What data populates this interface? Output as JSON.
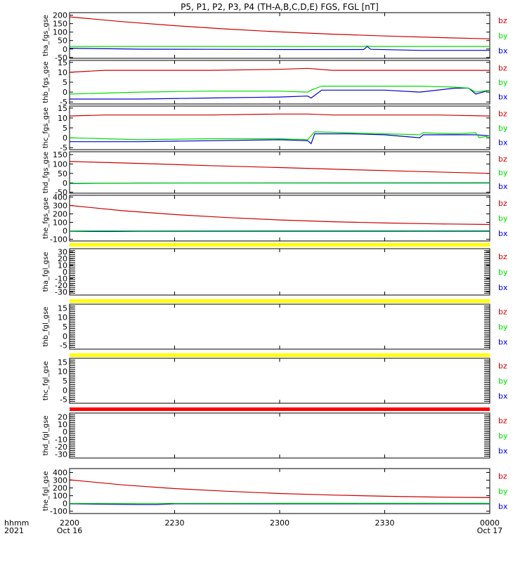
{
  "title": "P5, P1, P2, P3, P4 (TH-A,B,C,D,E) FGS, FGL [nT]",
  "time_axis": {
    "row1_label": "hhmm",
    "row2_label": "2021",
    "ticks": [
      {
        "t": 0,
        "label": "2200",
        "date": "Oct 16"
      },
      {
        "t": 30,
        "label": "2230",
        "date": ""
      },
      {
        "t": 60,
        "label": "2300",
        "date": ""
      },
      {
        "t": 90,
        "label": "2330",
        "date": ""
      },
      {
        "t": 120,
        "label": "0000",
        "date": "Oct 17"
      }
    ],
    "range_minutes": [
      0,
      120
    ]
  },
  "colors": {
    "bz": "#cc0000",
    "by": "#00dd00",
    "bx": "#0000cc",
    "flag_yellow": "#ffff00",
    "flag_red": "#ff0000",
    "axis": "#000000"
  },
  "chart_data": [
    {
      "type": "line",
      "name": "tha_fgs_gse",
      "ylabel": "tha_fgs_gse",
      "ylim": [
        -55,
        215
      ],
      "yticks": [
        -50,
        0,
        50,
        100,
        150,
        200
      ],
      "legend": [
        "bz",
        "by",
        "bx"
      ],
      "flag": "none",
      "series": [
        {
          "name": "bz",
          "x": [
            0,
            15,
            30,
            45,
            60,
            75,
            90,
            105,
            120
          ],
          "values": [
            190,
            162,
            138,
            118,
            101,
            88,
            77,
            68,
            60
          ]
        },
        {
          "name": "by",
          "x": [
            0,
            30,
            60,
            84,
            85,
            86,
            120
          ],
          "values": [
            15,
            15,
            15,
            15,
            18,
            15,
            15
          ]
        },
        {
          "name": "bx",
          "x": [
            0,
            20,
            40,
            60,
            84,
            85,
            86,
            100,
            120
          ],
          "values": [
            5,
            -1,
            -2,
            -3,
            -3,
            15,
            -2,
            -8,
            -8
          ]
        }
      ]
    },
    {
      "type": "line",
      "name": "thb_fgs_gse",
      "ylabel": "thb_fgs_gse",
      "ylim": [
        -6,
        16
      ],
      "yticks": [
        -5,
        0,
        5,
        10,
        15
      ],
      "legend": [
        "bz",
        "by",
        "bx"
      ],
      "flag": "none",
      "series": [
        {
          "name": "bz",
          "x": [
            0,
            10,
            20,
            40,
            60,
            68,
            75,
            90,
            105,
            120
          ],
          "values": [
            10,
            11,
            11,
            11,
            11.5,
            12,
            11,
            11,
            11,
            11
          ]
        },
        {
          "name": "by",
          "x": [
            0,
            20,
            40,
            60,
            68,
            69,
            72,
            80,
            90,
            100,
            110,
            114,
            116,
            120
          ],
          "values": [
            -1,
            0,
            0.5,
            0.5,
            0,
            1,
            3,
            3,
            3,
            3,
            2.5,
            2,
            0,
            1
          ]
        },
        {
          "name": "bx",
          "x": [
            0,
            20,
            40,
            60,
            68,
            69,
            72,
            80,
            90,
            100,
            110,
            114,
            116,
            120
          ],
          "values": [
            -3.5,
            -3.5,
            -3,
            -2.5,
            -2,
            -3,
            1,
            1,
            1,
            0,
            2,
            2,
            -1,
            1
          ]
        }
      ]
    },
    {
      "type": "line",
      "name": "thc_fgs_gse",
      "ylabel": "thc_fgs_gse",
      "ylim": [
        -6,
        16
      ],
      "yticks": [
        -5,
        0,
        5,
        10,
        15
      ],
      "legend": [
        "bz",
        "by",
        "bx"
      ],
      "flag": "none",
      "series": [
        {
          "name": "bz",
          "x": [
            0,
            10,
            20,
            40,
            60,
            68,
            75,
            90,
            105,
            120
          ],
          "values": [
            11,
            11.5,
            11.5,
            11.5,
            12,
            12,
            11.5,
            11.5,
            11.5,
            11
          ]
        },
        {
          "name": "by",
          "x": [
            0,
            20,
            40,
            60,
            68,
            69,
            70,
            80,
            90,
            100,
            101,
            110,
            116,
            117,
            120
          ],
          "values": [
            0,
            -1,
            -0.5,
            -0.5,
            -1,
            1,
            3,
            2.5,
            2,
            1.5,
            2.5,
            2,
            2.5,
            0,
            1
          ]
        },
        {
          "name": "bx",
          "x": [
            0,
            20,
            40,
            60,
            68,
            69,
            70,
            80,
            90,
            100,
            101,
            110,
            116,
            120
          ],
          "values": [
            -2,
            -2,
            -1.5,
            -1,
            -1.5,
            -3,
            2,
            2,
            1.5,
            0,
            1.5,
            1.5,
            1.5,
            1
          ]
        }
      ]
    },
    {
      "type": "line",
      "name": "thd_fgs_gse",
      "ylabel": "thd_fgs_gse",
      "ylim": [
        -55,
        165
      ],
      "yticks": [
        -50,
        0,
        50,
        100,
        150
      ],
      "legend": [
        "bz",
        "by",
        "bx"
      ],
      "flag": "none",
      "series": [
        {
          "name": "bz",
          "x": [
            0,
            20,
            40,
            60,
            80,
            100,
            120
          ],
          "values": [
            113,
            103,
            91,
            81,
            70,
            60,
            50
          ]
        },
        {
          "name": "by",
          "x": [
            0,
            60,
            120
          ],
          "values": [
            -2,
            0,
            1
          ]
        },
        {
          "name": "bx",
          "x": [
            0,
            10,
            20,
            120
          ],
          "values": [
            -4,
            -2,
            -1,
            -1
          ]
        }
      ]
    },
    {
      "type": "line",
      "name": "the_fgs_gse",
      "ylabel": "the_fgs_gse",
      "ylim": [
        -120,
        420
      ],
      "yticks": [
        -100,
        0,
        100,
        200,
        300,
        400
      ],
      "legend": [
        "bz",
        "by",
        "bx"
      ],
      "flag": "yellow",
      "series": [
        {
          "name": "bz",
          "x": [
            0,
            15,
            30,
            45,
            60,
            75,
            90,
            105,
            120
          ],
          "values": [
            300,
            238,
            192,
            157,
            128,
            108,
            93,
            82,
            75
          ]
        },
        {
          "name": "by",
          "x": [
            0,
            60,
            120
          ],
          "values": [
            0,
            2,
            2
          ]
        },
        {
          "name": "bx",
          "x": [
            0,
            10,
            20,
            60,
            120
          ],
          "values": [
            -5,
            -8,
            -5,
            -5,
            -5
          ]
        }
      ]
    },
    {
      "type": "line",
      "name": "tha_fgl_gse",
      "ylabel": "tha_fgl_gse",
      "ylim": [
        -35,
        35
      ],
      "yticks": [
        -30,
        -20,
        -10,
        0,
        10,
        20,
        30
      ],
      "legend": [
        "bz",
        "by",
        "bx"
      ],
      "flag": "yellow",
      "series": []
    },
    {
      "type": "line",
      "name": "thb_fgl_gse",
      "ylabel": "thb_fgl_gse",
      "ylim": [
        -7,
        17
      ],
      "yticks": [
        -5,
        0,
        5,
        10,
        15
      ],
      "legend": [
        "bz",
        "by",
        "bx"
      ],
      "flag": "yellow",
      "series": []
    },
    {
      "type": "line",
      "name": "thc_fgl_gse",
      "ylabel": "thc_fgl_gse",
      "ylim": [
        -7,
        17
      ],
      "yticks": [
        -5,
        0,
        5,
        10,
        15
      ],
      "legend": [
        "bz",
        "by",
        "bx"
      ],
      "flag": "yellow",
      "series": []
    },
    {
      "type": "line",
      "name": "thd_fgl_gse",
      "ylabel": "thd_fgl_gse",
      "ylim": [
        -35,
        25
      ],
      "yticks": [
        -30,
        -20,
        -10,
        0,
        10,
        20
      ],
      "legend": [
        "bz",
        "by",
        "bx"
      ],
      "flag": "red",
      "series": []
    },
    {
      "type": "line",
      "name": "the_fgl_gse",
      "ylabel": "the_fgl_gse",
      "ylim": [
        -130,
        450
      ],
      "yticks": [
        -100,
        0,
        100,
        200,
        300,
        400
      ],
      "legend": [
        "bz",
        "by",
        "bx"
      ],
      "flag": "none",
      "series": [
        {
          "name": "bz",
          "x": [
            0,
            15,
            30,
            45,
            60,
            75,
            90,
            105,
            120
          ],
          "values": [
            305,
            240,
            192,
            157,
            128,
            108,
            93,
            82,
            75
          ]
        },
        {
          "name": "by",
          "x": [
            0,
            60,
            120
          ],
          "values": [
            0,
            2,
            2
          ]
        },
        {
          "name": "bx",
          "x": [
            0,
            20,
            25,
            30,
            60,
            120
          ],
          "values": [
            -5,
            -15,
            -15,
            -5,
            -5,
            -5
          ]
        }
      ]
    }
  ]
}
